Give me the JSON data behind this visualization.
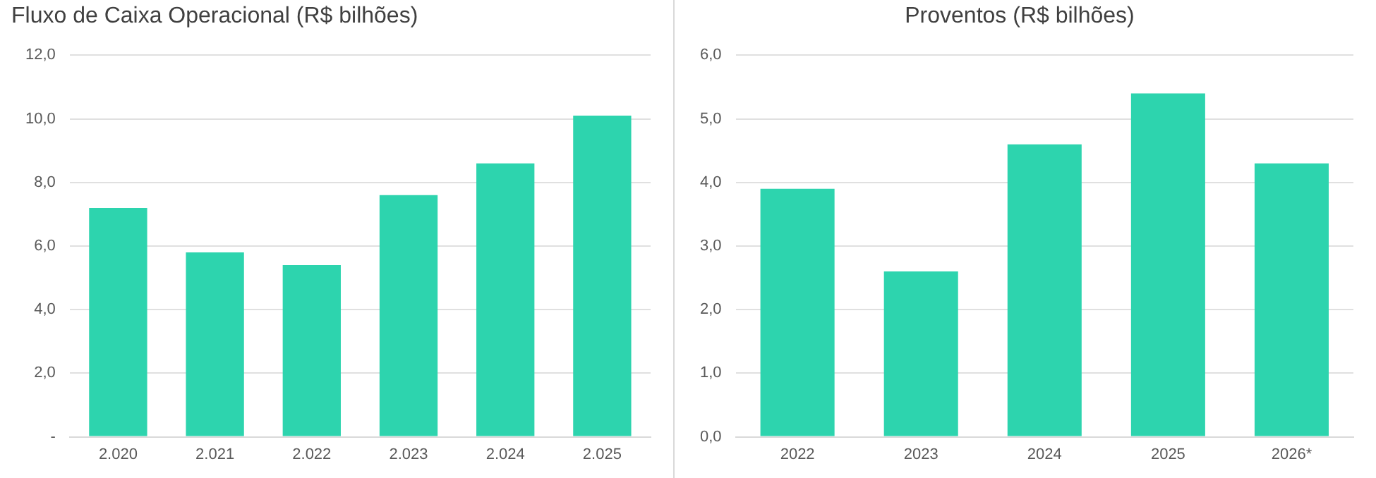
{
  "chart_data": [
    {
      "type": "bar",
      "title": "Fluxo de Caixa Operacional (R$ bilhões)",
      "categories": [
        "2.020",
        "2.021",
        "2.022",
        "2.023",
        "2.024",
        "2.025"
      ],
      "values": [
        7.2,
        5.8,
        5.4,
        7.6,
        8.6,
        10.1
      ],
      "color": "#2dd4ae",
      "ylim": [
        0,
        12
      ],
      "yticks": [
        {
          "value": 0,
          "label": "-"
        },
        {
          "value": 2,
          "label": "2,0"
        },
        {
          "value": 4,
          "label": "4,0"
        },
        {
          "value": 6,
          "label": "6,0"
        },
        {
          "value": 8,
          "label": "8,0"
        },
        {
          "value": 10,
          "label": "10,0"
        },
        {
          "value": 12,
          "label": "12,0"
        }
      ],
      "grid": "y",
      "legend": false
    },
    {
      "type": "bar",
      "title": "Proventos (R$ bilhões)",
      "categories": [
        "2022",
        "2023",
        "2024",
        "2025",
        "2026*"
      ],
      "values": [
        3.9,
        2.6,
        4.6,
        5.4,
        4.3
      ],
      "color": "#2dd4ae",
      "ylim": [
        0,
        6
      ],
      "yticks": [
        {
          "value": 0,
          "label": "0,0"
        },
        {
          "value": 1,
          "label": "1,0"
        },
        {
          "value": 2,
          "label": "2,0"
        },
        {
          "value": 3,
          "label": "3,0"
        },
        {
          "value": 4,
          "label": "4,0"
        },
        {
          "value": 5,
          "label": "5,0"
        },
        {
          "value": 6,
          "label": "6,0"
        }
      ],
      "grid": "y",
      "legend": false
    }
  ]
}
